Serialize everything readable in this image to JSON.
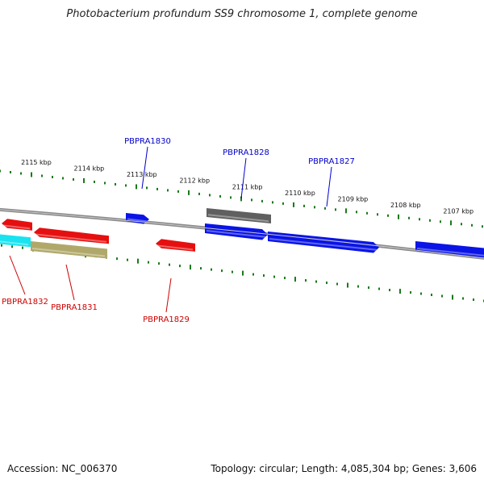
{
  "title": "Photobacterium profundum SS9 chromosome 1, complete genome",
  "footer": {
    "accession": "Accession: NC_006370",
    "topology": "Topology: circular; Length: 4,085,304 bp; Genes: 3,606"
  },
  "colors": {
    "backbone": "#8a8a8a",
    "tick": "#1a7a1a",
    "forward_label": "#0000cc",
    "reverse_label": "#cc0000",
    "blue_gene": "#0a14e6",
    "red_gene": "#e60f0f",
    "cyan_gene": "#19e3f0",
    "olive_gene": "#b0a86a",
    "gray_gene": "#606060"
  },
  "kbp_labels": [
    {
      "text": "2115 kbp",
      "kbp": 2115
    },
    {
      "text": "2114 kbp",
      "kbp": 2114
    },
    {
      "text": "2113 kbp",
      "kbp": 2113
    },
    {
      "text": "2112 kbp",
      "kbp": 2112
    },
    {
      "text": "2111 kbp",
      "kbp": 2111
    },
    {
      "text": "2110 kbp",
      "kbp": 2110
    },
    {
      "text": "2109 kbp",
      "kbp": 2109
    },
    {
      "text": "2108 kbp",
      "kbp": 2108
    },
    {
      "text": "2107 kbp",
      "kbp": 2107
    }
  ],
  "genes": [
    {
      "strand": "reverse",
      "color": "red"
    },
    {
      "strand": "reverse",
      "color": "red"
    },
    {
      "strand": "reverse",
      "color": "cyan"
    },
    {
      "strand": "reverse",
      "color": "olive"
    },
    {
      "strand": "forward",
      "color": "blue"
    },
    {
      "strand": "reverse",
      "color": "red"
    },
    {
      "strand": "none",
      "color": "gray"
    },
    {
      "strand": "forward",
      "color": "blue"
    },
    {
      "strand": "forward",
      "color": "blue"
    },
    {
      "strand": "forward",
      "color": "blue"
    }
  ],
  "gene_labels": [
    {
      "text": "PBPRA1830",
      "strand": "forward"
    },
    {
      "text": "PBPRA1828",
      "strand": "forward"
    },
    {
      "text": "PBPRA1827",
      "strand": "forward"
    },
    {
      "text": "PBPRA1832",
      "strand": "reverse"
    },
    {
      "text": "PBPRA1831",
      "strand": "reverse"
    },
    {
      "text": "PBPRA1829",
      "strand": "reverse"
    }
  ]
}
